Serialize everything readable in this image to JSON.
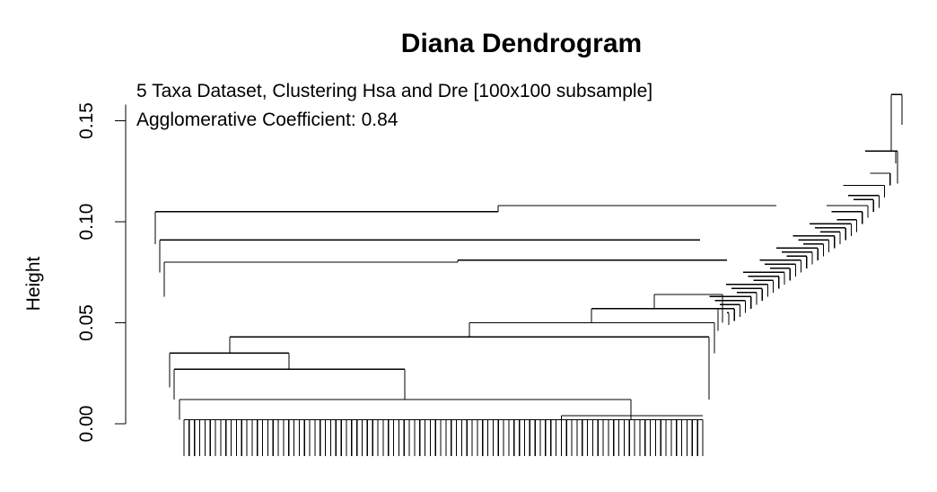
{
  "chart_data": {
    "type": "dendrogram",
    "title": "Diana Dendrogram",
    "subtitle_lines": [
      "5 Taxa Dataset, Clustering Hsa and Dre [100x100 subsample]",
      "Agglomerative Coefficient: 0.84"
    ],
    "ylabel": "Height",
    "xlabel": "",
    "ylim": [
      0,
      0.16
    ],
    "yticks": [
      0.0,
      0.05,
      0.1,
      0.15
    ],
    "ytick_labels": [
      "0.00",
      "0.05",
      "0.10",
      "0.15"
    ],
    "leaf_count": 100,
    "merge_heights": {
      "root": 0.163,
      "staircase": [
        0.135,
        0.124,
        0.118,
        0.113,
        0.111,
        0.108,
        0.105,
        0.101,
        0.099,
        0.097,
        0.095,
        0.093,
        0.091,
        0.089,
        0.087,
        0.085,
        0.083,
        0.081,
        0.079,
        0.077,
        0.075,
        0.073,
        0.071,
        0.069,
        0.067,
        0.065,
        0.063,
        0.061,
        0.059,
        0.057,
        0.055
      ],
      "main_cluster": [
        0.105,
        0.091,
        0.08,
        0.043,
        0.035,
        0.027,
        0.012
      ],
      "sub_cluster": [
        0.064,
        0.057,
        0.05
      ],
      "leaf_level": 0.002
    }
  }
}
